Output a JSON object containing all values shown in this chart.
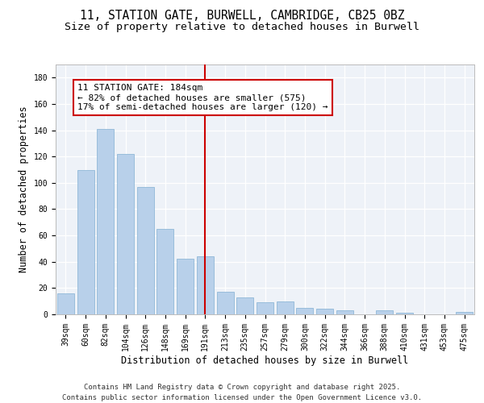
{
  "title_line1": "11, STATION GATE, BURWELL, CAMBRIDGE, CB25 0BZ",
  "title_line2": "Size of property relative to detached houses in Burwell",
  "xlabel": "Distribution of detached houses by size in Burwell",
  "ylabel": "Number of detached properties",
  "categories": [
    "39sqm",
    "60sqm",
    "82sqm",
    "104sqm",
    "126sqm",
    "148sqm",
    "169sqm",
    "191sqm",
    "213sqm",
    "235sqm",
    "257sqm",
    "279sqm",
    "300sqm",
    "322sqm",
    "344sqm",
    "366sqm",
    "388sqm",
    "410sqm",
    "431sqm",
    "453sqm",
    "475sqm"
  ],
  "values": [
    16,
    110,
    141,
    122,
    97,
    65,
    42,
    44,
    17,
    13,
    9,
    10,
    5,
    4,
    3,
    0,
    3,
    1,
    0,
    0,
    2
  ],
  "bar_color": "#b8d0ea",
  "bar_edgecolor": "#90b8d8",
  "vline_x_idx": 7,
  "vline_color": "#cc0000",
  "annotation_line1": "11 STATION GATE: 184sqm",
  "annotation_line2": "← 82% of detached houses are smaller (575)",
  "annotation_line3": "17% of semi-detached houses are larger (120) →",
  "annotation_boxcolor": "white",
  "annotation_edgecolor": "#cc0000",
  "ylim": [
    0,
    190
  ],
  "yticks": [
    0,
    20,
    40,
    60,
    80,
    100,
    120,
    140,
    160,
    180
  ],
  "footer_line1": "Contains HM Land Registry data © Crown copyright and database right 2025.",
  "footer_line2": "Contains public sector information licensed under the Open Government Licence v3.0.",
  "bg_color": "#eef2f8",
  "grid_color": "white",
  "title_fontsize": 10.5,
  "subtitle_fontsize": 9.5,
  "axis_label_fontsize": 8.5,
  "tick_fontsize": 7,
  "annotation_fontsize": 8,
  "footer_fontsize": 6.5
}
